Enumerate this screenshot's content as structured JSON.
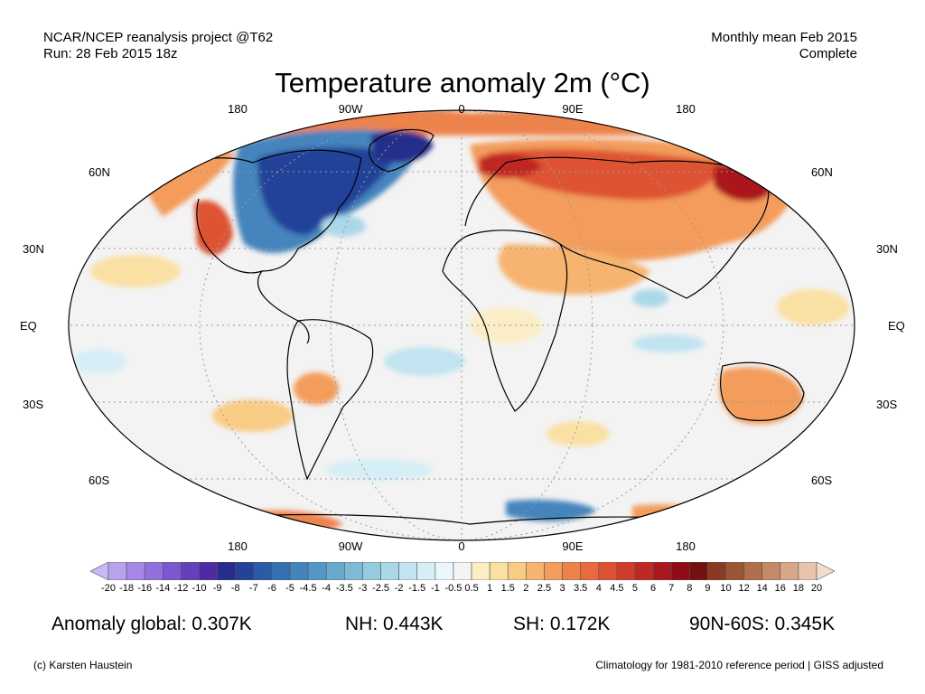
{
  "header": {
    "left_line1": "NCAR/NCEP reanalysis project @T62",
    "left_line2": "Run: 28 Feb 2015 18z",
    "right_line1": "Monthly mean Feb 2015",
    "right_line2": "Complete"
  },
  "title": "Temperature anomaly 2m (°C)",
  "lon_labels": [
    "180",
    "90W",
    "0",
    "90E",
    "180"
  ],
  "lat_labels": [
    "60N",
    "30N",
    "EQ",
    "30S",
    "60S"
  ],
  "colorbar": {
    "ticks": [
      "-20",
      "-18",
      "-16",
      "-14",
      "-12",
      "-10",
      "-9",
      "-8",
      "-7",
      "-6",
      "-5",
      "-4.5",
      "-4",
      "-3.5",
      "-3",
      "-2.5",
      "-2",
      "-1.5",
      "-1",
      "-0.5",
      "0.5",
      "1",
      "1.5",
      "2",
      "2.5",
      "3",
      "3.5",
      "4",
      "4.5",
      "5",
      "6",
      "7",
      "8",
      "9",
      "10",
      "12",
      "14",
      "16",
      "18",
      "20"
    ],
    "colors": [
      "#c9b9f4",
      "#b8a2ee",
      "#a588e6",
      "#9070dc",
      "#7a58cf",
      "#6440bd",
      "#4e2ba6",
      "#262d8c",
      "#24429a",
      "#2a5aa8",
      "#3570b2",
      "#4484bc",
      "#5597c4",
      "#68a9cd",
      "#7ebad6",
      "#95cadf",
      "#abd8e8",
      "#c1e4f0",
      "#d6eef6",
      "#eaf6fa",
      "#f4f4f4",
      "#fbeec6",
      "#fbe0a3",
      "#f9cc86",
      "#f6b470",
      "#f39c5c",
      "#ee824b",
      "#e86a3e",
      "#de5233",
      "#d13b2b",
      "#c02824",
      "#aa181e",
      "#8f0c16",
      "#751010",
      "#8a3a22",
      "#9c5435",
      "#b06e4c",
      "#c48a68",
      "#d8a688",
      "#e9c4ac",
      "#f4dccc"
    ]
  },
  "stats": {
    "global": "Anomaly global: 0.307K",
    "nh": "NH: 0.443K",
    "sh": "SH: 0.172K",
    "polar": "90N-60S: 0.345K"
  },
  "footer": {
    "left": "(c) Karsten Haustein",
    "right": "Climatology for 1981-2010 reference period | GISS adjusted"
  }
}
